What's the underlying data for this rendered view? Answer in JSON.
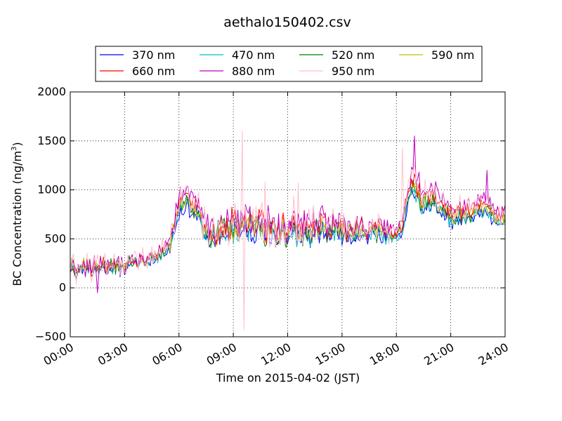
{
  "chart_data": {
    "type": "line",
    "title": "aethalo150402.csv",
    "xlabel": "Time on 2015-04-02 (JST)",
    "ylabel_main": "BC Concentration (ng/m",
    "ylabel_sup": "3",
    "ylabel_close": ")",
    "xlim_hours": [
      0,
      24
    ],
    "ylim": [
      -500,
      2000
    ],
    "x_ticks": [
      {
        "h": 0,
        "label": "00:00"
      },
      {
        "h": 3,
        "label": "03:00"
      },
      {
        "h": 6,
        "label": "06:00"
      },
      {
        "h": 9,
        "label": "09:00"
      },
      {
        "h": 12,
        "label": "12:00"
      },
      {
        "h": 15,
        "label": "15:00"
      },
      {
        "h": 18,
        "label": "18:00"
      },
      {
        "h": 21,
        "label": "21:00"
      },
      {
        "h": 24,
        "label": "24:00"
      }
    ],
    "y_ticks": [
      {
        "v": -500,
        "label": "−500"
      },
      {
        "v": 0,
        "label": "0"
      },
      {
        "v": 500,
        "label": "500"
      },
      {
        "v": 1000,
        "label": "1000"
      },
      {
        "v": 1500,
        "label": "1500"
      },
      {
        "v": 2000,
        "label": "2000"
      }
    ],
    "grid": true,
    "legend_position": "top",
    "series": [
      {
        "name": "370 nm",
        "color": "#0000ff",
        "scale": 0.88,
        "noise": 1.0,
        "seed": 11
      },
      {
        "name": "470 nm",
        "color": "#00bfbf",
        "scale": 0.91,
        "noise": 1.0,
        "seed": 23
      },
      {
        "name": "520 nm",
        "color": "#008000",
        "scale": 0.94,
        "noise": 1.05,
        "seed": 37
      },
      {
        "name": "590 nm",
        "color": "#bfbf00",
        "scale": 0.97,
        "noise": 1.1,
        "seed": 41
      },
      {
        "name": "660 nm",
        "color": "#ff0000",
        "scale": 1.0,
        "noise": 1.15,
        "seed": 53
      },
      {
        "name": "880 nm",
        "color": "#bf00bf",
        "scale": 1.06,
        "noise": 1.3,
        "seed": 67
      },
      {
        "name": "950 nm",
        "color": "#ffc0cb",
        "scale": 1.02,
        "noise": 1.7,
        "seed": 79
      }
    ],
    "baseline_profile": [
      [
        0.0,
        200
      ],
      [
        0.5,
        180
      ],
      [
        1.0,
        220
      ],
      [
        2.0,
        200
      ],
      [
        3.0,
        230
      ],
      [
        4.0,
        300
      ],
      [
        5.0,
        350
      ],
      [
        5.5,
        450
      ],
      [
        6.0,
        850
      ],
      [
        6.5,
        950
      ],
      [
        7.0,
        820
      ],
      [
        7.5,
        560
      ],
      [
        8.0,
        570
      ],
      [
        9.0,
        640
      ],
      [
        10.0,
        660
      ],
      [
        11.0,
        620
      ],
      [
        12.0,
        630
      ],
      [
        13.0,
        610
      ],
      [
        14.0,
        620
      ],
      [
        15.0,
        610
      ],
      [
        16.0,
        600
      ],
      [
        17.0,
        600
      ],
      [
        18.0,
        560
      ],
      [
        18.4,
        640
      ],
      [
        18.6,
        1000
      ],
      [
        19.0,
        1100
      ],
      [
        19.5,
        880
      ],
      [
        20.0,
        1000
      ],
      [
        20.5,
        860
      ],
      [
        21.0,
        760
      ],
      [
        22.0,
        800
      ],
      [
        23.0,
        840
      ],
      [
        24.0,
        730
      ]
    ],
    "noise_profile": [
      [
        0.0,
        90
      ],
      [
        3.0,
        80
      ],
      [
        5.0,
        60
      ],
      [
        6.0,
        80
      ],
      [
        7.0,
        90
      ],
      [
        8.0,
        150
      ],
      [
        10.0,
        170
      ],
      [
        12.0,
        150
      ],
      [
        15.0,
        110
      ],
      [
        18.0,
        70
      ],
      [
        19.0,
        110
      ],
      [
        21.0,
        80
      ],
      [
        24.0,
        70
      ]
    ],
    "spikes": [
      {
        "h": 9.5,
        "value": 1600,
        "series": "950 nm"
      },
      {
        "h": 9.55,
        "value": -430,
        "series": "950 nm"
      },
      {
        "h": 10.75,
        "value": 1080,
        "series": "950 nm"
      },
      {
        "h": 12.55,
        "value": 1070,
        "series": "950 nm"
      },
      {
        "h": 18.35,
        "value": 1430,
        "series": "950 nm"
      },
      {
        "h": 19.0,
        "value": 1550,
        "series": "880 nm"
      },
      {
        "h": 1.5,
        "value": -50,
        "series": "880 nm"
      },
      {
        "h": 23.0,
        "value": 1200,
        "series": "880 nm"
      }
    ]
  }
}
